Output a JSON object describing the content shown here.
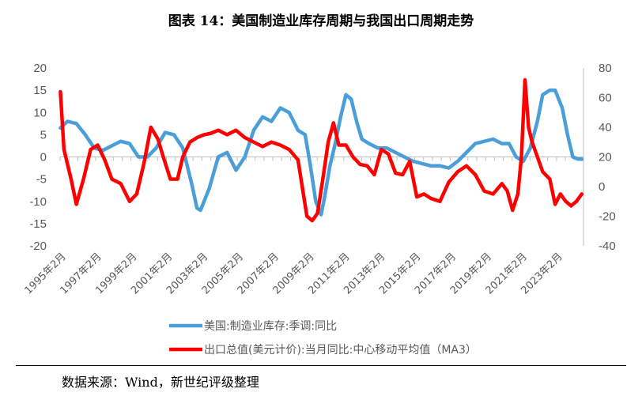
{
  "header": {
    "title": "图表 14：美国制造业库存周期与我国出口周期走势"
  },
  "footer": {
    "source": "数据来源：Wind，新世纪评级整理"
  },
  "colors": {
    "series1": "#4a9fd8",
    "series2": "#ff0000",
    "axis": "#bfbfbf",
    "tick_text": "#595959"
  },
  "chart_data": {
    "type": "line",
    "title": "美国制造业库存周期与我国出口周期走势",
    "x_tick_labels": [
      "1995年2月",
      "1997年2月",
      "1999年2月",
      "2001年2月",
      "2003年2月",
      "2005年2月",
      "2007年2月",
      "2009年2月",
      "2011年2月",
      "2013年2月",
      "2015年2月",
      "2017年2月",
      "2019年2月",
      "2021年2月",
      "2023年2月"
    ],
    "x_range": [
      1995.08,
      2024.6
    ],
    "y_left": {
      "min": -20,
      "max": 20,
      "step": 5,
      "ticks": [
        20,
        15,
        10,
        5,
        0,
        -5,
        -10,
        -15,
        -20
      ]
    },
    "y_right": {
      "min": -40,
      "max": 80,
      "step": 20,
      "ticks": [
        80,
        60,
        40,
        20,
        0,
        -20,
        -40
      ]
    },
    "series": [
      {
        "name": "美国:制造业库存:季调:同比",
        "axis": "left",
        "color": "#4a9fd8",
        "x": [
          1995.1,
          1995.5,
          1996.0,
          1996.5,
          1997.0,
          1997.5,
          1998.0,
          1998.5,
          1999.0,
          1999.5,
          2000.0,
          2000.5,
          2001.0,
          2001.5,
          2002.0,
          2002.5,
          2002.8,
          2003.0,
          2003.5,
          2004.0,
          2004.5,
          2005.0,
          2005.5,
          2006.0,
          2006.5,
          2007.0,
          2007.5,
          2008.0,
          2008.5,
          2008.9,
          2009.2,
          2009.5,
          2009.8,
          2010.0,
          2010.3,
          2010.6,
          2010.9,
          2011.2,
          2011.5,
          2011.8,
          2012.1,
          2012.5,
          2013.0,
          2013.5,
          2014.0,
          2014.5,
          2015.0,
          2015.5,
          2016.0,
          2016.5,
          2017.0,
          2017.5,
          2018.0,
          2018.5,
          2019.0,
          2019.5,
          2020.0,
          2020.4,
          2020.8,
          2021.2,
          2021.6,
          2022.0,
          2022.3,
          2022.7,
          2023.0,
          2023.4,
          2023.7,
          2024.0,
          2024.3,
          2024.5
        ],
        "values": [
          6.5,
          8,
          7.5,
          5,
          2,
          1.5,
          2.5,
          3.5,
          3,
          0,
          0,
          2,
          5.5,
          5,
          2,
          -6,
          -11.5,
          -12,
          -7,
          0,
          1,
          -3,
          0,
          6,
          9,
          8,
          11,
          10,
          6,
          5,
          -2,
          -10,
          -13,
          -9,
          -2,
          3,
          9,
          14,
          13,
          8,
          4,
          3,
          2,
          2,
          1,
          0,
          -1,
          -1.5,
          -2,
          -2,
          -2.5,
          -1,
          1,
          3,
          3.5,
          4,
          3,
          3,
          0,
          -1,
          2,
          8,
          14,
          15,
          15,
          11,
          5,
          0,
          -0.5,
          -0.5
        ],
        "legend_label": "美国:制造业库存:季调:同比"
      },
      {
        "name": "出口总值(美元计价):当月同比:中心移动平均值（MA3）",
        "axis": "right",
        "color": "#ff0000",
        "x": [
          1995.1,
          1995.3,
          1995.7,
          1996.0,
          1996.4,
          1996.8,
          1997.2,
          1997.6,
          1998.0,
          1998.5,
          1999.0,
          1999.4,
          1999.8,
          2000.2,
          2000.6,
          2000.9,
          2001.3,
          2001.7,
          2002.0,
          2002.4,
          2002.8,
          2003.2,
          2003.6,
          2004.0,
          2004.5,
          2005.0,
          2005.5,
          2006.0,
          2006.5,
          2007.0,
          2007.5,
          2008.0,
          2008.5,
          2008.8,
          2009.0,
          2009.3,
          2009.6,
          2009.9,
          2010.2,
          2010.5,
          2010.8,
          2011.2,
          2011.6,
          2012.0,
          2012.4,
          2012.8,
          2013.2,
          2013.6,
          2014.0,
          2014.4,
          2014.8,
          2015.2,
          2015.6,
          2016.0,
          2016.5,
          2017.0,
          2017.5,
          2018.0,
          2018.5,
          2019.0,
          2019.5,
          2020.0,
          2020.3,
          2020.6,
          2020.9,
          2021.1,
          2021.3,
          2021.5,
          2021.7,
          2022.0,
          2022.3,
          2022.7,
          2023.0,
          2023.3,
          2023.6,
          2023.9,
          2024.2,
          2024.5
        ],
        "values": [
          64,
          25,
          5,
          -12,
          5,
          25,
          28,
          18,
          5,
          2,
          -10,
          -5,
          15,
          40,
          32,
          20,
          5,
          5,
          20,
          30,
          33,
          35,
          36,
          38,
          35,
          38,
          33,
          30,
          27,
          30,
          28,
          25,
          18,
          -5,
          -20,
          -23,
          -18,
          5,
          30,
          43,
          28,
          28,
          20,
          15,
          14,
          8,
          25,
          22,
          9,
          8,
          17,
          -7,
          -5,
          -8,
          -10,
          3,
          10,
          14,
          8,
          -3,
          -5,
          2,
          -3,
          -16,
          -5,
          20,
          72,
          40,
          30,
          20,
          10,
          5,
          -12,
          -5,
          -10,
          -13,
          -10,
          -5
        ],
        "legend_label": "出口总值(美元计价):当月同比:中心移动平均值（MA3）"
      }
    ]
  }
}
